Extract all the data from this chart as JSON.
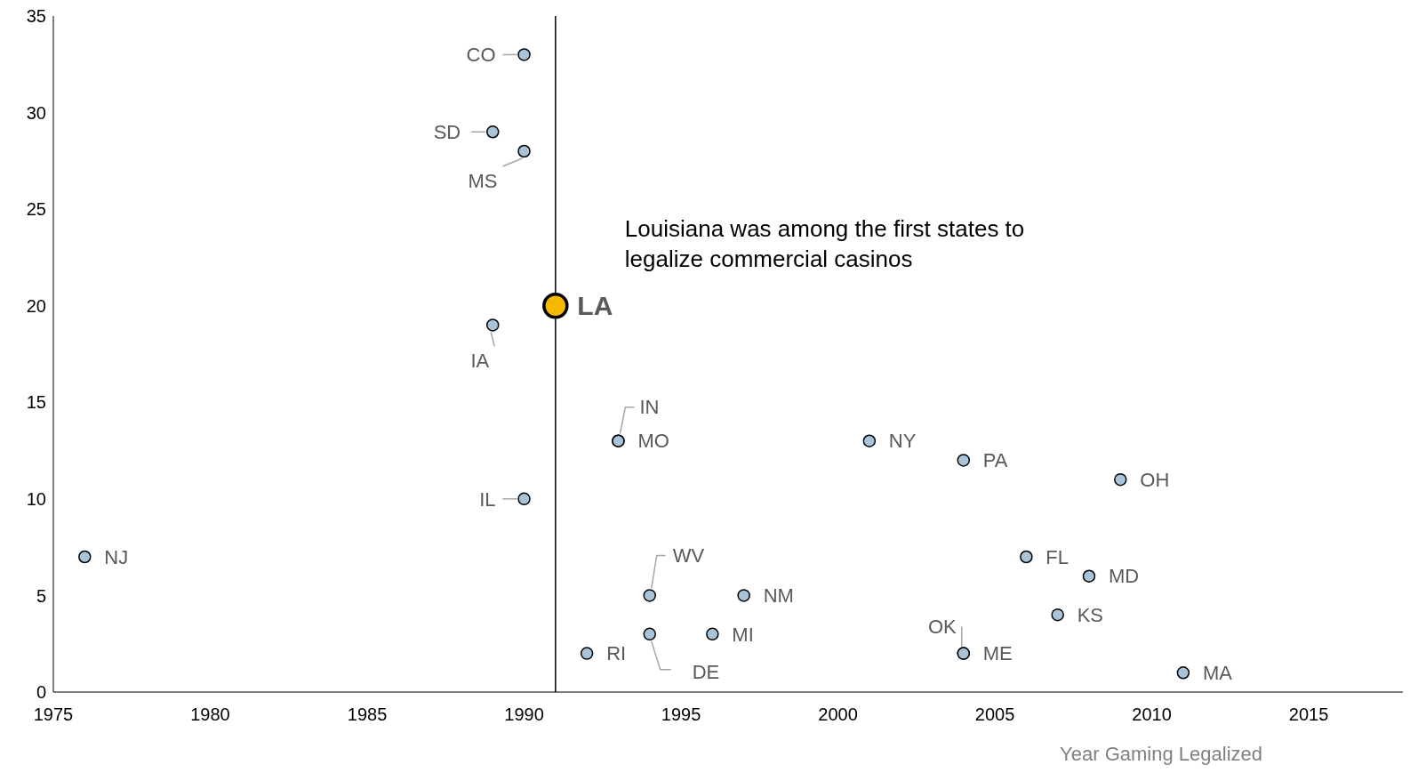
{
  "chart_data": {
    "type": "scatter",
    "xlabel": "Year Gaming Legalized",
    "xlim": [
      1975,
      2018
    ],
    "xticks": [
      1975,
      1980,
      1985,
      1990,
      1995,
      2000,
      2005,
      2010,
      2015
    ],
    "ylim": [
      0,
      35
    ],
    "yticks": [
      0,
      5,
      10,
      15,
      20,
      25,
      30,
      35
    ],
    "grid": false,
    "legend": false,
    "marker": "circle",
    "series": [
      {
        "color": "#a9c4d9",
        "x": [
          1976,
          1990,
          1989,
          1990,
          1989,
          1993,
          1993,
          1990,
          2001,
          2004,
          2009,
          2006,
          2008,
          2007,
          1994,
          1997,
          1994,
          1996,
          1992,
          2004,
          2004,
          2011
        ],
        "values": [
          7,
          33,
          29,
          28,
          19,
          13,
          13,
          10,
          13,
          12,
          11,
          7,
          6,
          4,
          5,
          5,
          3,
          3,
          2,
          2,
          2,
          1
        ]
      },
      {
        "name": "LA",
        "color": "#f5b800",
        "x": [
          1991
        ],
        "values": [
          20
        ]
      }
    ],
    "ref_lines": [
      {
        "axis": "x",
        "value": 1991,
        "color": "#000000"
      }
    ],
    "annotations": [
      {
        "text": "NJ",
        "x": 1976,
        "y": 7
      },
      {
        "text": "CO",
        "x": 1990,
        "y": 33
      },
      {
        "text": "SD",
        "x": 1989,
        "y": 29
      },
      {
        "text": "MS",
        "x": 1990,
        "y": 28
      },
      {
        "text": "IA",
        "x": 1989,
        "y": 19
      },
      {
        "text": "IN",
        "x": 1993,
        "y": 13
      },
      {
        "text": "MO",
        "x": 1993,
        "y": 13
      },
      {
        "text": "IL",
        "x": 1990,
        "y": 10
      },
      {
        "text": "NY",
        "x": 2001,
        "y": 13
      },
      {
        "text": "PA",
        "x": 2004,
        "y": 12
      },
      {
        "text": "OH",
        "x": 2009,
        "y": 11
      },
      {
        "text": "FL",
        "x": 2006,
        "y": 7
      },
      {
        "text": "MD",
        "x": 2008,
        "y": 6
      },
      {
        "text": "KS",
        "x": 2007,
        "y": 4
      },
      {
        "text": "WV",
        "x": 1994,
        "y": 5
      },
      {
        "text": "NM",
        "x": 1997,
        "y": 5
      },
      {
        "text": "DE",
        "x": 1994,
        "y": 3
      },
      {
        "text": "MI",
        "x": 1996,
        "y": 3
      },
      {
        "text": "RI",
        "x": 1992,
        "y": 2
      },
      {
        "text": "OK",
        "x": 2004,
        "y": 2
      },
      {
        "text": "ME",
        "x": 2004,
        "y": 2
      },
      {
        "text": "MA",
        "x": 2011,
        "y": 1
      },
      "Louisiana was among the first states to legalize commercial casinos"
    ]
  }
}
